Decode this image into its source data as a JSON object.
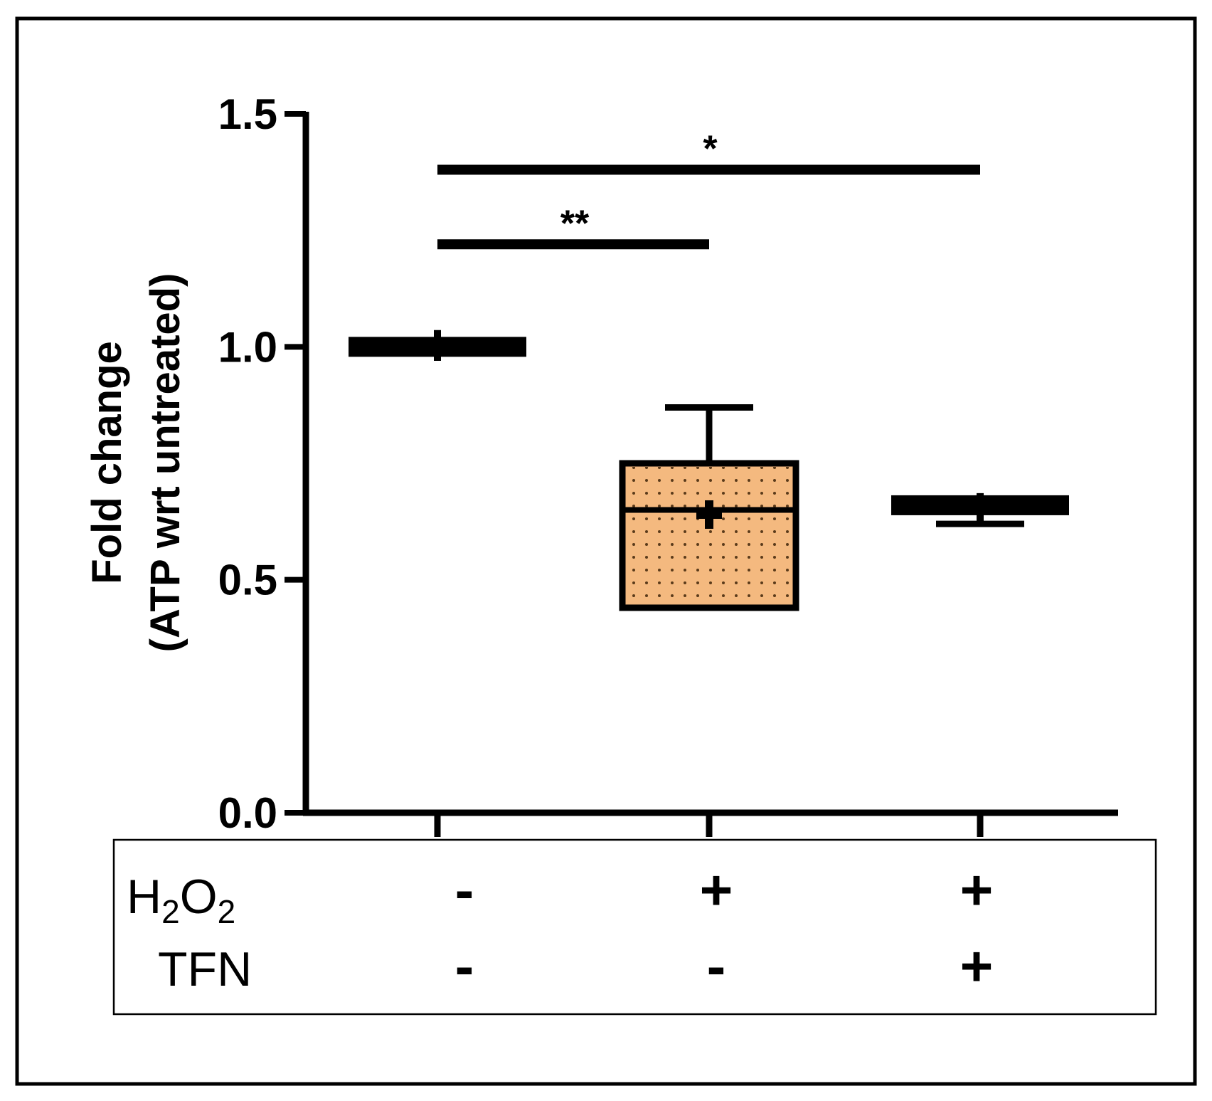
{
  "chart_data": {
    "type": "box",
    "ylabel_line1": "Fold change",
    "ylabel_line2": "(ATP wrt untreated)",
    "ylim": [
      0,
      1.5
    ],
    "yticks": [
      "0.0",
      "0.5",
      "1.0",
      "1.5"
    ],
    "ytick_values": [
      0,
      0.5,
      1.0,
      1.5
    ],
    "groups": [
      {
        "min": 0.97,
        "q1": 0.985,
        "median": 1.0,
        "q3": 1.015,
        "max": 1.03,
        "mean": 1.0,
        "fill": "#000000",
        "pattern": false
      },
      {
        "min": 0.44,
        "q1": 0.44,
        "median": 0.65,
        "q3": 0.75,
        "max": 0.87,
        "mean": 0.64,
        "fill": "#f4b97f",
        "pattern": true
      },
      {
        "min": 0.62,
        "q1": 0.645,
        "median": 0.66,
        "q3": 0.675,
        "max": 0.68,
        "mean": 0.66,
        "fill": "#000000",
        "pattern": false
      }
    ],
    "significance": [
      {
        "from": 0,
        "to": 1,
        "y": 1.22,
        "label": "**"
      },
      {
        "from": 0,
        "to": 2,
        "y": 1.38,
        "label": "*"
      }
    ],
    "treatments": {
      "rows": [
        {
          "name_base": "H",
          "name_sub1": "2",
          "name_mid": "O",
          "name_sub2": "2",
          "signs": [
            "-",
            "+",
            "+"
          ]
        },
        {
          "name": "TFN",
          "signs": [
            "-",
            "-",
            "+"
          ]
        }
      ]
    },
    "grid": false,
    "legend": "none"
  }
}
